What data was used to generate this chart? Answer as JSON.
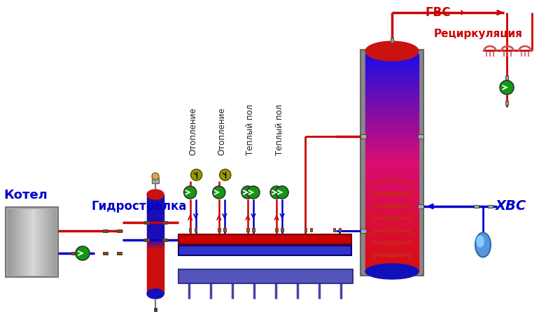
{
  "bg_color": "#ffffff",
  "title_gvs": "ГВС →",
  "title_recirc": "Рециркуляция",
  "title_hvs": "ХВС",
  "label_gidro": "Гидрострелка",
  "label_kotel": "Котел",
  "labels_top": [
    "Отопление",
    "Отопление",
    "Теплый пол",
    "Теплый пол"
  ],
  "red": "#cc0000",
  "blue": "#0000cc",
  "dark_red": "#990000",
  "dark_blue": "#000099",
  "boiler_top_color": "#cc1111",
  "boiler_bottom_color": "#1111bb",
  "hydro_top_color": "#cc2222",
  "hydro_bottom_color": "#2222bb",
  "manifold_red_color": "#cc0000",
  "manifold_blue_color": "#3333cc",
  "manifold_support_color": "#5555bb",
  "green": "#119911",
  "yellow_green": "#999900",
  "gray": "#888888",
  "light_gray": "#cccccc",
  "dark_gray": "#444444",
  "tank_outer": "#999999"
}
